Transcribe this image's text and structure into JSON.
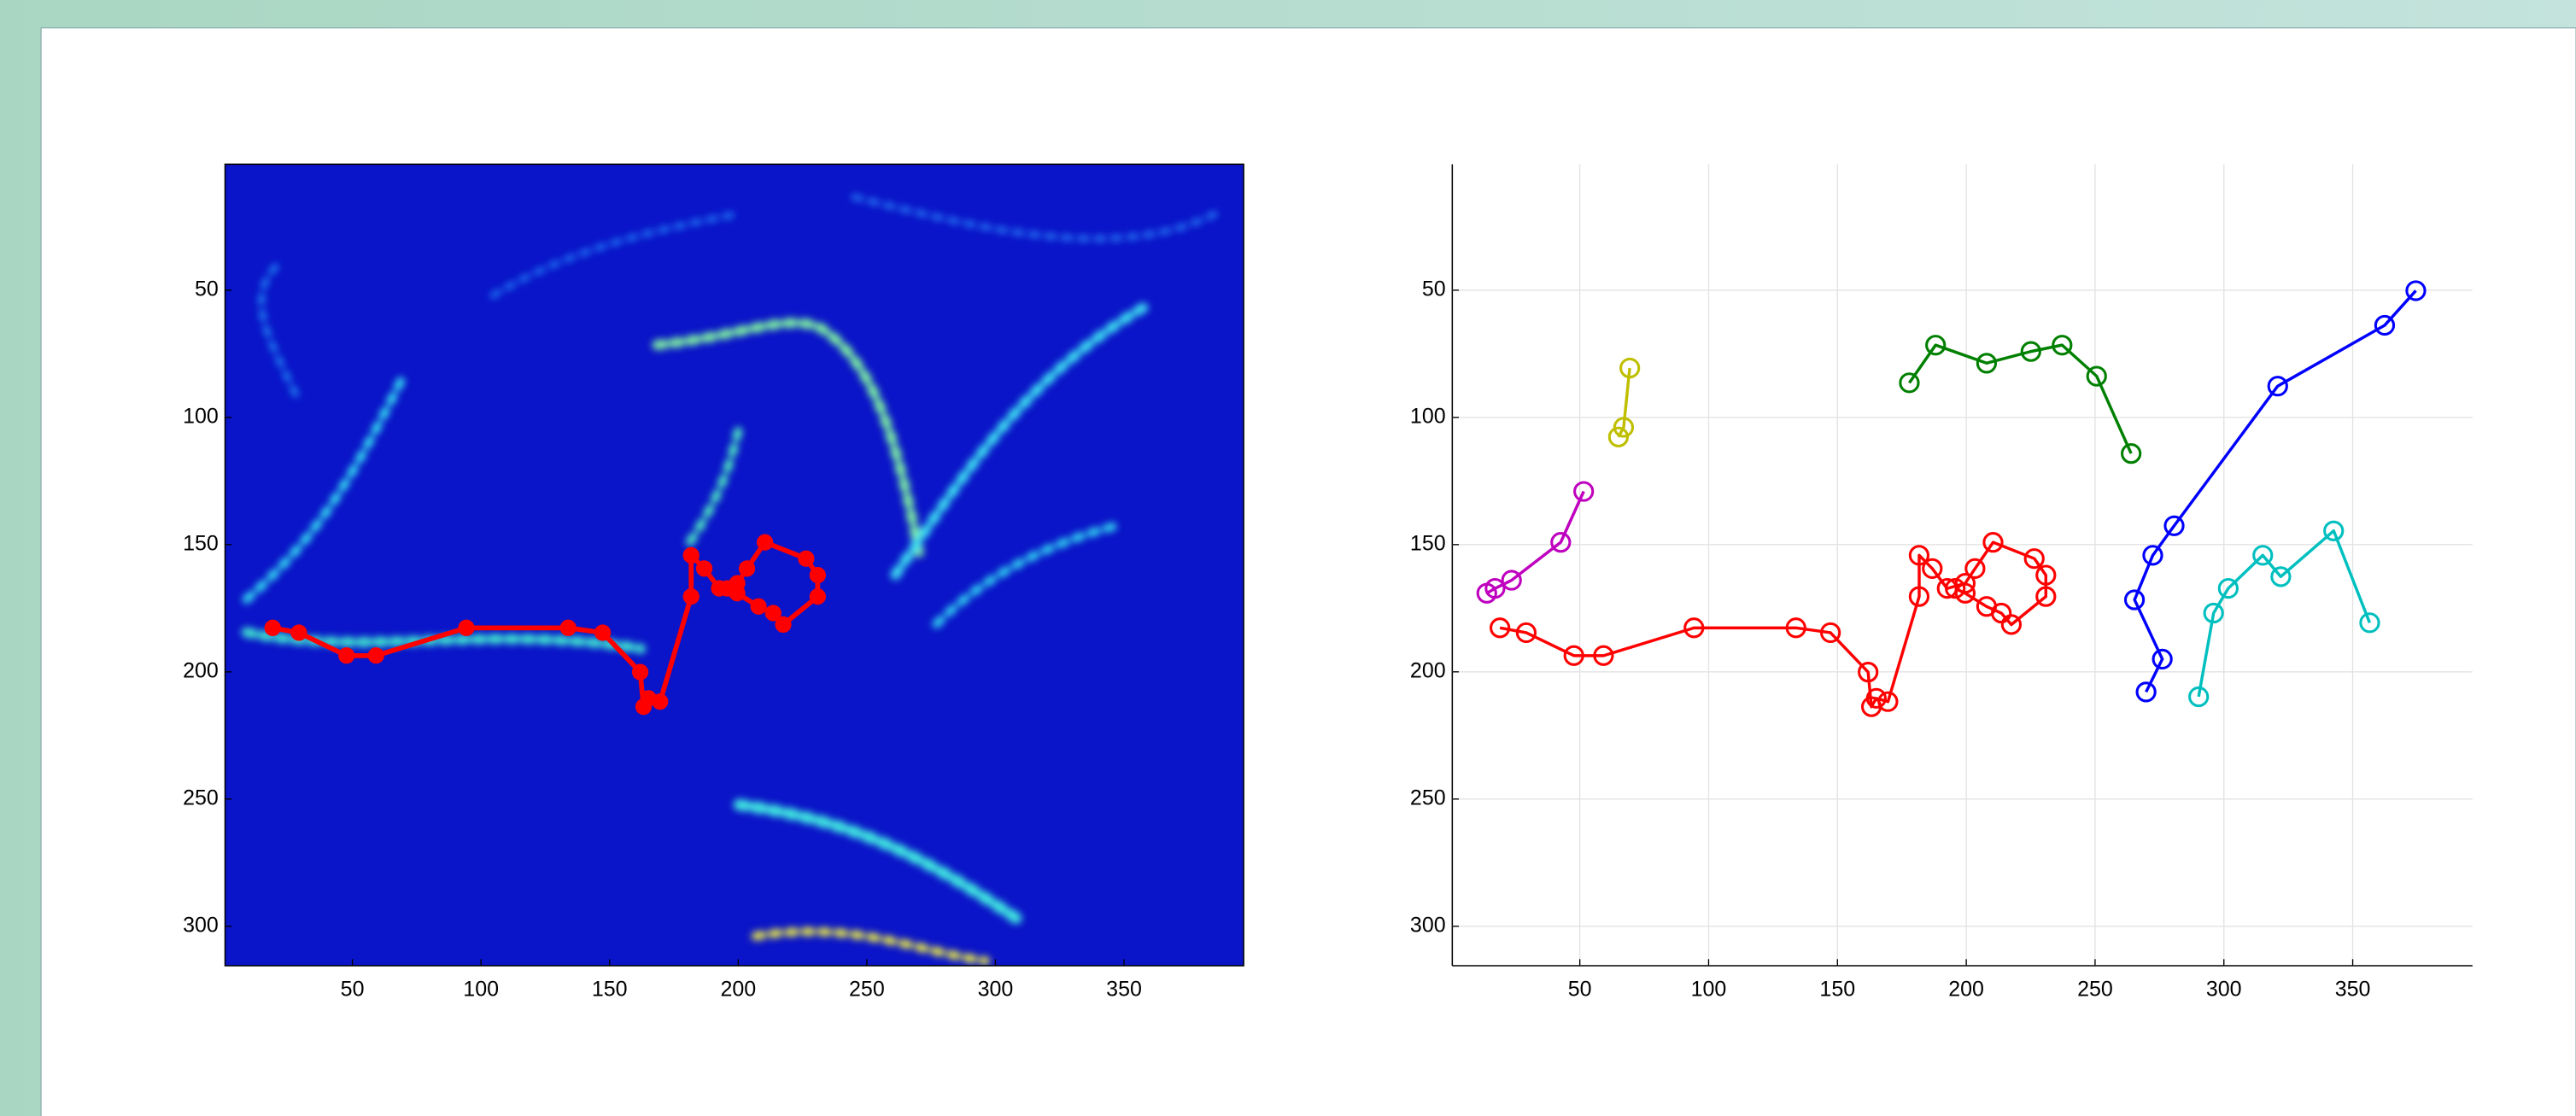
{
  "chart_data": [
    {
      "type": "image-overlay",
      "xlim": [
        0.5,
        396.5
      ],
      "ylim": [
        0.5,
        315.5
      ],
      "xticks": [
        50,
        100,
        150,
        200,
        250,
        300,
        350
      ],
      "yticks": [
        50,
        100,
        150,
        200,
        250,
        300
      ],
      "grid": false,
      "y_reversed": true,
      "series": [
        {
          "color": "#ff0000",
          "marker": "filled",
          "x": [
            19,
            29.2,
            47.7,
            59.2,
            94.3,
            133.9,
            147.3,
            161.9,
            163.2,
            165.1,
            169.6,
            181.7,
            181.7,
            186.8,
            192.6,
            199.6,
            203.4,
            210.4,
            226.4,
            230.9,
            230.9,
            217.5,
            213.6,
            207.9,
            199.6,
            195.7
          ],
          "values": [
            182.7,
            184.6,
            193.6,
            193.6,
            182.7,
            182.7,
            184.6,
            200.1,
            213.7,
            210.4,
            211.7,
            170.4,
            154.2,
            159.4,
            167.2,
            165.2,
            159.4,
            149.1,
            155.5,
            162,
            170.4,
            181.4,
            176.9,
            174.3,
            169.1,
            167.2
          ]
        }
      ]
    },
    {
      "type": "line",
      "xlim": [
        0.5,
        396.5
      ],
      "ylim": [
        0.5,
        315.5
      ],
      "xticks": [
        50,
        100,
        150,
        200,
        250,
        300,
        350
      ],
      "yticks": [
        50,
        100,
        150,
        200,
        250,
        300
      ],
      "grid": true,
      "y_reversed": true,
      "series": [
        {
          "color": "#ff0000",
          "marker": "open",
          "x": [
            19,
            29.2,
            47.7,
            59.2,
            94.3,
            133.9,
            147.3,
            161.9,
            163.2,
            165.1,
            169.6,
            181.7,
            181.7,
            186.8,
            192.6,
            199.6,
            203.4,
            210.4,
            226.4,
            230.9,
            230.9,
            217.5,
            213.6,
            207.9,
            199.6,
            195.7
          ],
          "values": [
            182.7,
            184.6,
            193.6,
            193.6,
            182.7,
            182.7,
            184.6,
            200.1,
            213.7,
            210.4,
            211.7,
            170.4,
            154.2,
            159.4,
            167.2,
            165.2,
            159.4,
            149.1,
            155.5,
            162,
            170.4,
            181.4,
            176.9,
            174.3,
            169.1,
            167.2
          ]
        },
        {
          "color": "#bf00bf",
          "marker": "open",
          "x": [
            13.9,
            17.1,
            23.5,
            42.6,
            51.5
          ],
          "values": [
            169.1,
            167.2,
            164,
            149.1,
            129.1
          ]
        },
        {
          "color": "#bfbf00",
          "marker": "open",
          "x": [
            65,
            67,
            69.4
          ],
          "values": [
            107.7,
            103.9,
            80.6
          ]
        },
        {
          "color": "#008000",
          "marker": "open",
          "x": [
            177.9,
            188.1,
            207.9,
            225.1,
            237.2,
            250.6,
            264
          ],
          "values": [
            86.4,
            71.6,
            78.7,
            74.1,
            71.6,
            83.8,
            114.2
          ]
        },
        {
          "color": "#0000ff",
          "marker": "open",
          "x": [
            269.8,
            276.1,
            265.3,
            272.4,
            280.7,
            320.9,
            362.4,
            374.5
          ],
          "values": [
            207.9,
            195,
            171.7,
            154.2,
            142.6,
            87.7,
            63.8,
            50.2
          ]
        },
        {
          "color": "#00bfbf",
          "marker": "open",
          "x": [
            290.2,
            296,
            301.7,
            315.1,
            322.1,
            342.6,
            356.6
          ],
          "values": [
            209.8,
            176.9,
            167.2,
            154.2,
            162.6,
            144.6,
            180.7
          ]
        }
      ]
    }
  ]
}
